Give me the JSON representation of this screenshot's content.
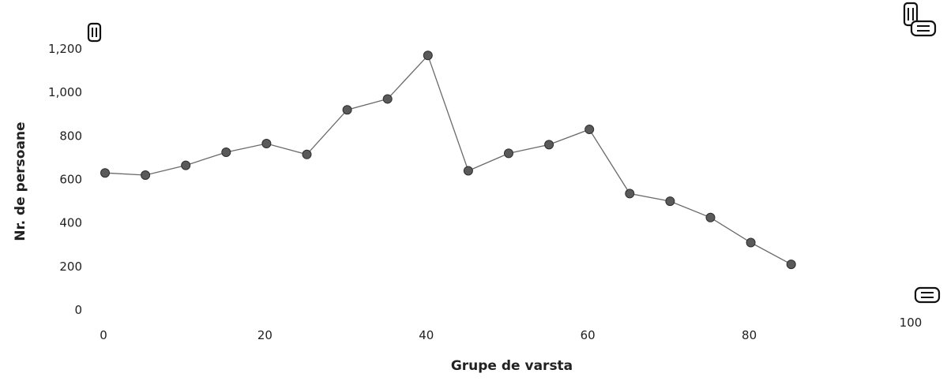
{
  "chart_data": {
    "type": "line",
    "title": "",
    "xlabel": "Grupe de varsta",
    "ylabel": "Nr. de persoane",
    "xlim": [
      0,
      100
    ],
    "ylim": [
      0,
      1200
    ],
    "x_ticks": [
      "0",
      "20",
      "40",
      "60",
      "80",
      "100"
    ],
    "y_ticks": [
      "0",
      "200",
      "400",
      "600",
      "800",
      "1,000",
      "1,200"
    ],
    "grid": false,
    "legend": "none",
    "line_color": "#6a6a6a",
    "marker_color": "#5a5a5a",
    "x": [
      0,
      5,
      10,
      15,
      20,
      25,
      30,
      35,
      40,
      45,
      50,
      55,
      60,
      65,
      70,
      75,
      80,
      85
    ],
    "series": [
      {
        "values": [
          630,
          620,
          665,
          725,
          765,
          715,
          920,
          970,
          1170,
          640,
          720,
          760,
          830,
          535,
          500,
          425,
          310,
          210
        ]
      }
    ]
  },
  "icons": {
    "y_axis_handle": "vertical-resize-icon",
    "corner_handle": "resize-menu-icon",
    "x_axis_handle": "horizontal-resize-icon"
  }
}
